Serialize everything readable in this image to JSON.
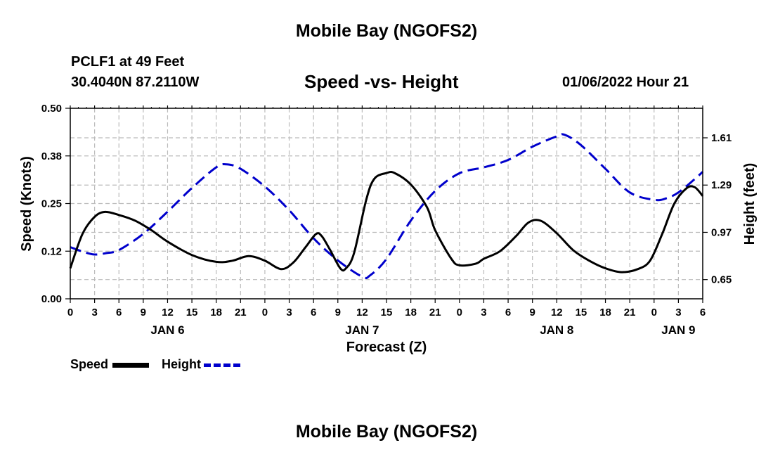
{
  "header": {
    "title": "Mobile Bay (NGOFS2)",
    "station": "PCLF1 at 49 Feet",
    "coordinates": "30.4040N  87.2110W",
    "subtitle": "Speed -vs- Height",
    "datetime": "01/06/2022 Hour 21"
  },
  "footer": {
    "title": "Mobile Bay (NGOFS2)"
  },
  "legend": {
    "speed_label": "Speed",
    "height_label": "Height"
  },
  "colors": {
    "speed": "#000000",
    "height": "#0000cc",
    "grid": "#bbbbbb"
  },
  "chart_data": {
    "type": "line",
    "title": "Speed -vs- Height",
    "xlabel": "Forecast (Z)",
    "ylabel": "Speed (Knots)",
    "ylabel_right": "Height (feet)",
    "x_unit": "hours since Jan 6 00Z",
    "xlim": [
      0,
      78
    ],
    "ylim": [
      0,
      0.5
    ],
    "ylim_right": [
      0.52,
      1.81
    ],
    "x_ticks": [
      0,
      3,
      6,
      9,
      12,
      15,
      18,
      21,
      24,
      27,
      30,
      33,
      36,
      39,
      42,
      45,
      48,
      51,
      54,
      57,
      60,
      63,
      66,
      69,
      72,
      75,
      78
    ],
    "x_tick_labels": [
      "0",
      "3",
      "6",
      "9",
      "12",
      "15",
      "18",
      "21",
      "0",
      "3",
      "6",
      "9",
      "12",
      "15",
      "18",
      "21",
      "0",
      "3",
      "6",
      "9",
      "12",
      "15",
      "18",
      "21",
      "0",
      "3",
      "6"
    ],
    "day_labels": [
      {
        "x": 12,
        "label": "JAN 6"
      },
      {
        "x": 36,
        "label": "JAN 7"
      },
      {
        "x": 60,
        "label": "JAN 8"
      },
      {
        "x": 75,
        "label": "JAN 9"
      }
    ],
    "y_ticks": [
      0,
      0.125,
      0.25,
      0.375,
      0.5
    ],
    "y_tick_labels": [
      "0.00",
      "0.12",
      "0.25",
      "0.38",
      "0.50"
    ],
    "y_ticks_right": [
      0.65,
      0.97,
      1.29,
      1.61
    ],
    "y_tick_labels_right": [
      "0.65",
      "0.97",
      "1.29",
      "1.61"
    ],
    "series": [
      {
        "name": "Speed",
        "axis": "left",
        "style": "solid",
        "x": [
          0,
          1.5,
          3,
          4.3,
          6,
          8,
          10,
          12,
          15,
          18,
          20,
          22,
          24,
          26,
          27.5,
          29,
          30.3,
          31,
          32,
          33.3,
          34,
          35,
          36.5,
          37.5,
          39,
          40,
          42,
          44,
          45,
          47,
          48,
          50,
          51,
          53,
          55,
          56.5,
          58,
          60,
          62,
          64,
          66,
          68,
          70,
          71.5,
          73,
          74.5,
          76,
          77,
          78
        ],
        "y": [
          0.08,
          0.17,
          0.215,
          0.228,
          0.22,
          0.205,
          0.18,
          0.15,
          0.115,
          0.097,
          0.1,
          0.112,
          0.1,
          0.078,
          0.095,
          0.135,
          0.17,
          0.165,
          0.13,
          0.08,
          0.08,
          0.12,
          0.26,
          0.315,
          0.33,
          0.33,
          0.3,
          0.24,
          0.18,
          0.105,
          0.088,
          0.092,
          0.105,
          0.125,
          0.165,
          0.2,
          0.205,
          0.172,
          0.128,
          0.1,
          0.08,
          0.07,
          0.078,
          0.1,
          0.17,
          0.25,
          0.29,
          0.293,
          0.27
        ]
      },
      {
        "name": "Height",
        "axis": "right",
        "style": "dashed",
        "x": [
          0,
          1.5,
          3,
          4.5,
          6,
          9,
          12,
          15,
          18,
          19.3,
          21,
          24,
          27,
          30,
          33,
          36,
          37,
          39,
          42,
          45,
          48,
          51,
          54,
          57,
          60,
          61,
          63,
          66,
          69,
          72,
          73.5,
          75,
          77,
          78
        ],
        "y": [
          0.87,
          0.84,
          0.82,
          0.83,
          0.85,
          0.96,
          1.11,
          1.27,
          1.41,
          1.43,
          1.4,
          1.28,
          1.12,
          0.93,
          0.78,
          0.67,
          0.68,
          0.79,
          1.05,
          1.25,
          1.37,
          1.41,
          1.46,
          1.55,
          1.62,
          1.63,
          1.56,
          1.4,
          1.24,
          1.19,
          1.2,
          1.24,
          1.33,
          1.38
        ]
      }
    ]
  }
}
